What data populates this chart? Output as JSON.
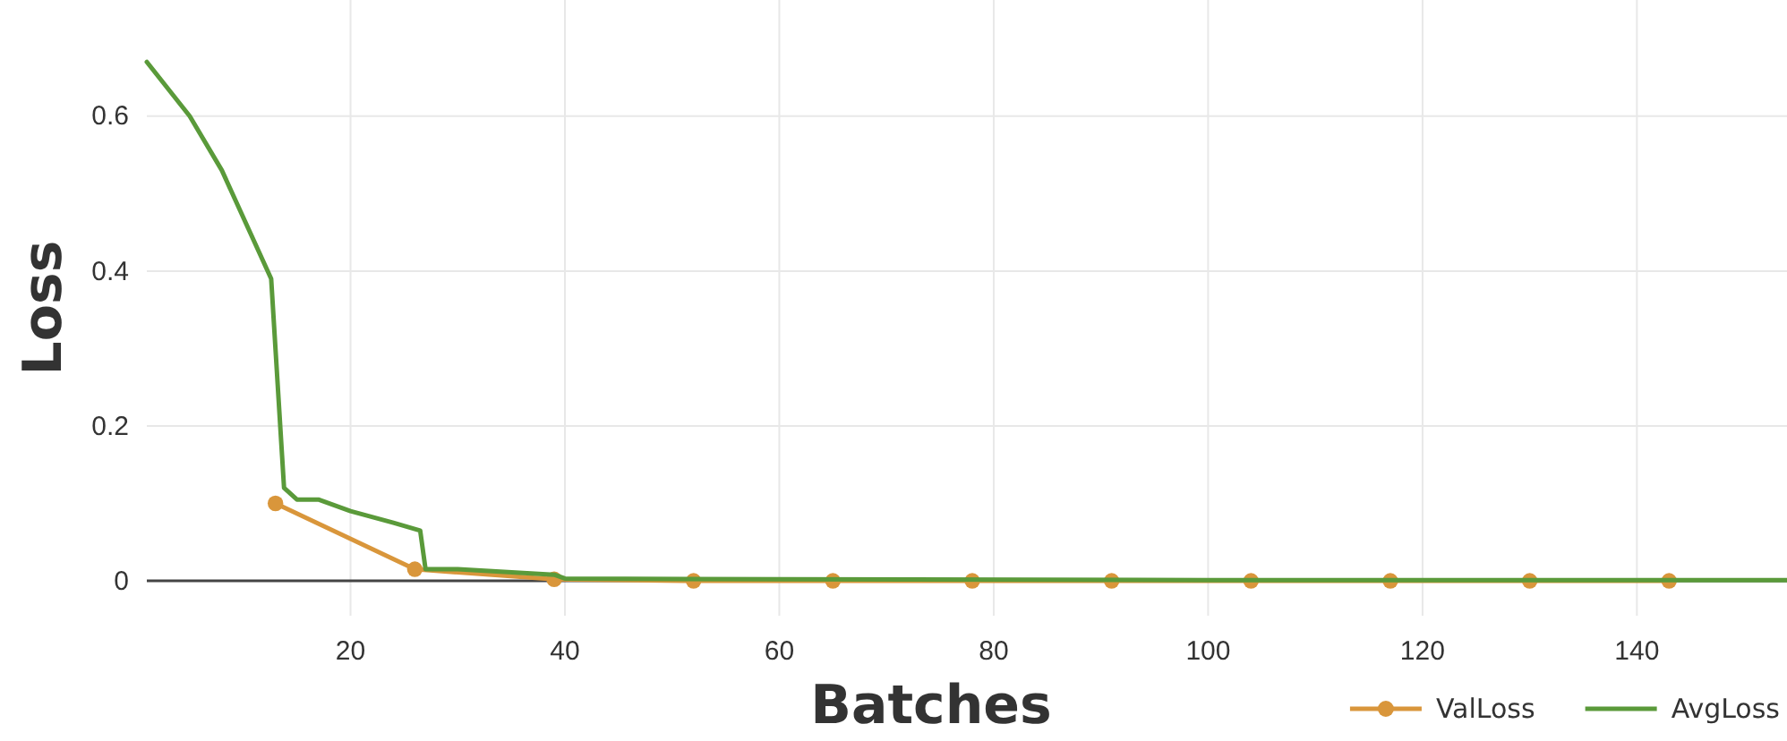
{
  "chart_data": {
    "type": "line",
    "xlabel": "Batches",
    "ylabel": "Loss",
    "xlim": [
      1,
      154
    ],
    "ylim": [
      -0.045,
      0.75
    ],
    "xticks": [
      20,
      40,
      60,
      80,
      100,
      120,
      140
    ],
    "yticks": [
      0,
      0.2,
      0.4,
      0.6
    ],
    "grid": true,
    "legend": "bottom right",
    "series": [
      {
        "name": "ValLoss",
        "color": "#d9963b",
        "marker": "circle",
        "x": [
          13,
          26,
          39,
          52,
          65,
          78,
          91,
          104,
          117,
          130,
          143
        ],
        "values": [
          0.1,
          0.015,
          0.002,
          0,
          0,
          0,
          0,
          0,
          0,
          0,
          0
        ]
      },
      {
        "name": "AvgLoss",
        "color": "#5a9a3a",
        "marker": "none",
        "x": [
          1,
          5,
          8,
          12.6,
          13.8,
          15,
          17,
          20,
          24,
          26.5,
          27,
          30,
          39,
          40,
          60,
          100,
          154
        ],
        "values": [
          0.67,
          0.6,
          0.53,
          0.39,
          0.12,
          0.105,
          0.105,
          0.09,
          0.075,
          0.065,
          0.015,
          0.015,
          0.008,
          0.003,
          0.002,
          0.001,
          0.001
        ]
      }
    ]
  }
}
